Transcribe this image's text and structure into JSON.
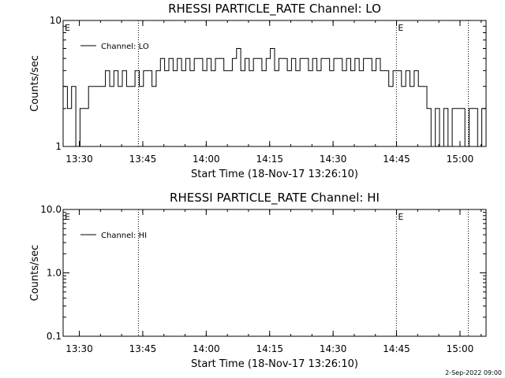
{
  "chart_data": [
    {
      "type": "line",
      "title": "RHESSI PARTICLE_RATE Channel: LO",
      "xlabel": "Start Time (18-Nov-17 13:26:10)",
      "ylabel": "Counts/sec",
      "yscale": "log",
      "ylim": [
        1,
        10
      ],
      "yticks": [
        "1",
        "10"
      ],
      "xticks": [
        "13:30",
        "13:45",
        "14:00",
        "14:15",
        "14:30",
        "14:45",
        "15:00"
      ],
      "xlim_minutes": [
        0,
        100
      ],
      "legend": "top-left",
      "series": [
        {
          "name": "Channel: LO",
          "x": [
            0,
            1,
            2,
            3,
            4,
            5,
            6,
            7,
            8,
            9,
            10,
            11,
            12,
            13,
            14,
            15,
            16,
            17,
            18,
            19,
            20,
            21,
            22,
            23,
            24,
            25,
            26,
            27,
            28,
            29,
            30,
            31,
            32,
            33,
            34,
            35,
            36,
            37,
            38,
            39,
            40,
            41,
            42,
            43,
            44,
            45,
            46,
            47,
            48,
            49,
            50,
            51,
            52,
            53,
            54,
            55,
            56,
            57,
            58,
            59,
            60,
            61,
            62,
            63,
            64,
            65,
            66,
            67,
            68,
            69,
            70,
            71,
            72,
            73,
            74,
            75,
            76,
            77,
            78,
            79,
            80,
            81,
            82,
            83,
            84,
            85,
            86,
            87,
            88,
            89,
            90,
            91,
            92,
            93,
            94,
            95,
            96,
            97,
            98,
            99
          ],
          "values": [
            3,
            2,
            3,
            1,
            2,
            2,
            3,
            3,
            3,
            3,
            4,
            3,
            4,
            3,
            4,
            3,
            3,
            4,
            3,
            4,
            4,
            3,
            4,
            5,
            4,
            5,
            4,
            5,
            4,
            5,
            4,
            5,
            5,
            4,
            5,
            4,
            5,
            5,
            4,
            4,
            5,
            6,
            4,
            5,
            4,
            5,
            5,
            4,
            5,
            6,
            4,
            5,
            5,
            4,
            5,
            4,
            5,
            5,
            4,
            5,
            4,
            5,
            5,
            4,
            5,
            5,
            4,
            5,
            4,
            5,
            4,
            5,
            5,
            4,
            5,
            4,
            4,
            3,
            4,
            4,
            3,
            4,
            3,
            4,
            3,
            3,
            2,
            1,
            2,
            1,
            2,
            1,
            2,
            2,
            2,
            1,
            2,
            2,
            1,
            2
          ]
        }
      ],
      "markers": [
        {
          "label": "E",
          "x_minutes": 0
        },
        {
          "label": "",
          "x_minutes": 17.8
        },
        {
          "label": "E",
          "x_minutes": 78.8
        },
        {
          "label": "",
          "x_minutes": 95.8
        }
      ]
    },
    {
      "type": "line",
      "title": "RHESSI PARTICLE_RATE Channel: HI",
      "xlabel": "Start Time (18-Nov-17 13:26:10)",
      "ylabel": "Counts/sec",
      "yscale": "log",
      "ylim": [
        0.1,
        10
      ],
      "yticks": [
        "0.1",
        "1.0",
        "10.0"
      ],
      "xticks": [
        "13:30",
        "13:45",
        "14:00",
        "14:15",
        "14:30",
        "14:45",
        "15:00"
      ],
      "xlim_minutes": [
        0,
        100
      ],
      "legend": "top-left",
      "series": [
        {
          "name": "Channel: HI",
          "x": [],
          "values": []
        }
      ],
      "markers": [
        {
          "label": "E",
          "x_minutes": 0
        },
        {
          "label": "",
          "x_minutes": 17.8
        },
        {
          "label": "E",
          "x_minutes": 78.8
        },
        {
          "label": "",
          "x_minutes": 95.8
        }
      ]
    }
  ],
  "footer": {
    "timestamp": "2-Sep-2022 09:00"
  }
}
